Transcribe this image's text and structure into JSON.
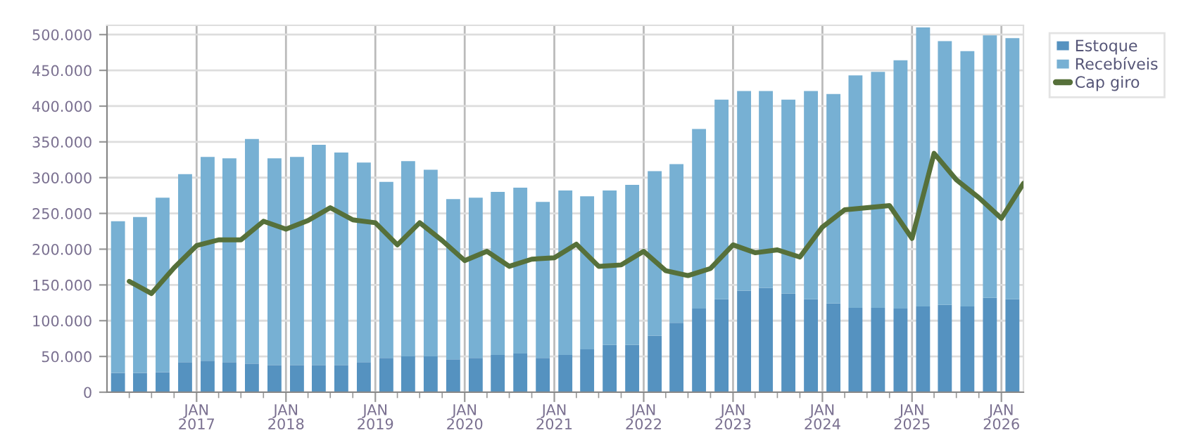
{
  "chart_data": {
    "type": "bar",
    "stacked": true,
    "grid": true,
    "legend": "right",
    "x": [
      "2016-02-15",
      "2016-05-15",
      "2016-08-15",
      "2016-11-15",
      "2017-02-15",
      "2017-05-15",
      "2017-08-15",
      "2017-11-15",
      "2018-02-15",
      "2018-05-15",
      "2018-08-15",
      "2018-11-15",
      "2019-02-15",
      "2019-05-15",
      "2019-08-15",
      "2019-11-15",
      "2020-02-15",
      "2020-05-15",
      "2020-08-15",
      "2020-11-15",
      "2021-02-15",
      "2021-05-15",
      "2021-08-15",
      "2021-11-15",
      "2022-02-15",
      "2022-05-15",
      "2022-08-15",
      "2022-11-15",
      "2023-02-15",
      "2023-05-15",
      "2023-08-15",
      "2023-11-15",
      "2024-02-15",
      "2024-05-15",
      "2024-08-15",
      "2024-11-15",
      "2025-02-15",
      "2025-05-15",
      "2025-08-15",
      "2025-11-15",
      "2026-02-15"
    ],
    "series": [
      {
        "name": "Estoque",
        "color": "#5592c0",
        "values": [
          27000,
          27000,
          28000,
          42000,
          44000,
          42000,
          40000,
          38000,
          38000,
          38000,
          38000,
          42000,
          48000,
          50000,
          50000,
          46000,
          48000,
          52000,
          54000,
          48000,
          52000,
          60000,
          66000,
          66000,
          79000,
          97000,
          117000,
          130000,
          142000,
          146000,
          138000,
          130000,
          124000,
          118000,
          118000,
          117000,
          120000,
          122000,
          120000,
          132000,
          130000
        ]
      },
      {
        "name": "Recebíveis",
        "color": "#77b0d3",
        "values": [
          212000,
          218000,
          244000,
          263000,
          285000,
          285000,
          314000,
          289000,
          291000,
          308000,
          297000,
          279000,
          246000,
          273000,
          261000,
          224000,
          224000,
          228000,
          232000,
          218000,
          230000,
          214000,
          216000,
          224000,
          230000,
          222000,
          251000,
          279000,
          279000,
          275000,
          271000,
          291000,
          293000,
          325000,
          330000,
          347000,
          390000,
          369000,
          357000,
          367000,
          365000
        ]
      },
      {
        "name": "Cap giro",
        "type": "line",
        "color": "#56703a",
        "line_style": "solid",
        "marker": "none",
        "x": [
          "2016-04-01",
          "2016-07-01",
          "2016-10-01",
          "2017-01-01",
          "2017-04-01",
          "2017-07-01",
          "2017-10-01",
          "2018-01-01",
          "2018-04-01",
          "2018-07-01",
          "2018-10-01",
          "2019-01-01",
          "2019-04-01",
          "2019-07-01",
          "2019-10-01",
          "2020-01-01",
          "2020-04-01",
          "2020-07-01",
          "2020-10-01",
          "2021-01-01",
          "2021-04-01",
          "2021-07-01",
          "2021-10-01",
          "2022-01-01",
          "2022-04-01",
          "2022-07-01",
          "2022-10-01",
          "2023-01-01",
          "2023-04-01",
          "2023-07-01",
          "2023-10-01",
          "2024-01-01",
          "2024-04-01",
          "2024-07-01",
          "2024-10-01",
          "2025-01-01",
          "2025-04-01",
          "2025-07-01",
          "2025-10-01",
          "2026-01-01",
          "2026-04-01"
        ],
        "values": [
          155000,
          138000,
          174000,
          205000,
          213000,
          213000,
          239000,
          228000,
          240000,
          258000,
          241000,
          237000,
          206000,
          237000,
          212000,
          184000,
          197000,
          176000,
          186000,
          188000,
          207000,
          176000,
          178000,
          197000,
          170000,
          163000,
          173000,
          206000,
          195000,
          199000,
          189000,
          231000,
          255000,
          258000,
          261000,
          215000,
          334000,
          297000,
          272000,
          243000,
          292000
        ]
      }
    ],
    "xlim": [
      "2016-01-01",
      "2026-04-01"
    ],
    "xticks": [
      {
        "value": "2016-04-01",
        "label": null
      },
      {
        "value": "2016-07-01",
        "label": null
      },
      {
        "value": "2016-10-01",
        "label": null
      },
      {
        "value": "2017-01-01",
        "label": "JAN\n2017"
      },
      {
        "value": "2017-04-01",
        "label": null
      },
      {
        "value": "2017-07-01",
        "label": null
      },
      {
        "value": "2017-10-01",
        "label": null
      },
      {
        "value": "2018-01-01",
        "label": "JAN\n2018"
      },
      {
        "value": "2018-04-01",
        "label": null
      },
      {
        "value": "2018-07-01",
        "label": null
      },
      {
        "value": "2018-10-01",
        "label": null
      },
      {
        "value": "2019-01-01",
        "label": "JAN\n2019"
      },
      {
        "value": "2019-04-01",
        "label": null
      },
      {
        "value": "2019-07-01",
        "label": null
      },
      {
        "value": "2019-10-01",
        "label": null
      },
      {
        "value": "2020-01-01",
        "label": "JAN\n2020"
      },
      {
        "value": "2020-04-01",
        "label": null
      },
      {
        "value": "2020-07-01",
        "label": null
      },
      {
        "value": "2020-10-01",
        "label": null
      },
      {
        "value": "2021-01-01",
        "label": "JAN\n2021"
      },
      {
        "value": "2021-04-01",
        "label": null
      },
      {
        "value": "2021-07-01",
        "label": null
      },
      {
        "value": "2021-10-01",
        "label": null
      },
      {
        "value": "2022-01-01",
        "label": "JAN\n2022"
      },
      {
        "value": "2022-04-01",
        "label": null
      },
      {
        "value": "2022-07-01",
        "label": null
      },
      {
        "value": "2022-10-01",
        "label": null
      },
      {
        "value": "2023-01-01",
        "label": "JAN\n2023"
      },
      {
        "value": "2023-04-01",
        "label": null
      },
      {
        "value": "2023-07-01",
        "label": null
      },
      {
        "value": "2023-10-01",
        "label": null
      },
      {
        "value": "2024-01-01",
        "label": "JAN\n2024"
      },
      {
        "value": "2024-04-01",
        "label": null
      },
      {
        "value": "2024-07-01",
        "label": null
      },
      {
        "value": "2024-10-01",
        "label": null
      },
      {
        "value": "2025-01-01",
        "label": "JAN\n2025"
      },
      {
        "value": "2025-04-01",
        "label": null
      },
      {
        "value": "2025-07-01",
        "label": null
      },
      {
        "value": "2025-10-01",
        "label": null
      },
      {
        "value": "2026-01-01",
        "label": "JAN\n2026"
      }
    ],
    "ylim": [
      0,
      513000
    ],
    "yticks": [
      {
        "value": 0,
        "label": "0"
      },
      {
        "value": 50000,
        "label": "50.000"
      },
      {
        "value": 100000,
        "label": "100.000"
      },
      {
        "value": 150000,
        "label": "150.000"
      },
      {
        "value": 200000,
        "label": "200.000"
      },
      {
        "value": 250000,
        "label": "250.000"
      },
      {
        "value": 300000,
        "label": "300.000"
      },
      {
        "value": 350000,
        "label": "350.000"
      },
      {
        "value": 400000,
        "label": "400.000"
      },
      {
        "value": 450000,
        "label": "450.000"
      },
      {
        "value": 500000,
        "label": "500.000"
      }
    ]
  }
}
